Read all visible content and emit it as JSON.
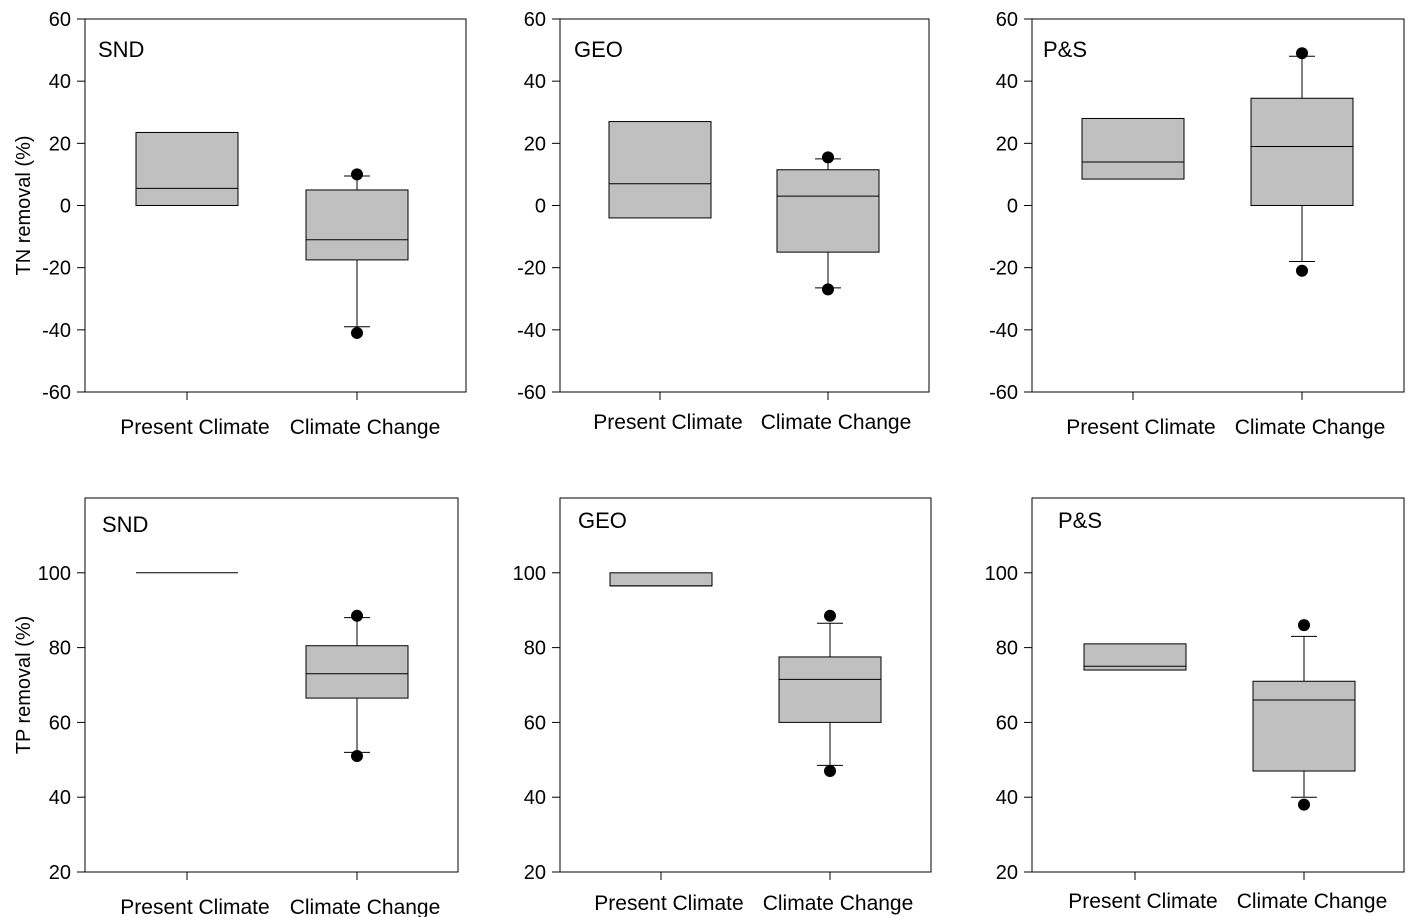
{
  "chart_data": [
    {
      "type": "box",
      "panel_label": "SND",
      "ylabel": "TN removal (%)",
      "ylim": [
        -60,
        60
      ],
      "yticks": [
        -60,
        -40,
        -20,
        0,
        20,
        40,
        60
      ],
      "categories": [
        "Present Climate",
        "Climate Change"
      ],
      "boxes": [
        {
          "category": "Present Climate",
          "q1": 0,
          "median": 5.5,
          "q3": 23.5
        },
        {
          "category": "Climate Change",
          "q1": -17.5,
          "median": -11,
          "q3": 5,
          "whisker_low": -39,
          "whisker_high": 9.5,
          "outliers": [
            -41,
            10
          ]
        }
      ]
    },
    {
      "type": "box",
      "panel_label": "GEO",
      "ylabel": "",
      "ylim": [
        -60,
        60
      ],
      "yticks": [
        -60,
        -40,
        -20,
        0,
        20,
        40,
        60
      ],
      "categories": [
        "Present Climate",
        "Climate Change"
      ],
      "boxes": [
        {
          "category": "Present Climate",
          "q1": -4,
          "median": 7,
          "q3": 27
        },
        {
          "category": "Climate Change",
          "q1": -15,
          "median": 3,
          "q3": 11.5,
          "whisker_low": -26.5,
          "whisker_high": 15,
          "outliers": [
            -27,
            15.5
          ]
        }
      ]
    },
    {
      "type": "box",
      "panel_label": "P&S",
      "ylabel": "",
      "ylim": [
        -60,
        60
      ],
      "yticks": [
        -60,
        -40,
        -20,
        0,
        20,
        40,
        60
      ],
      "categories": [
        "Present Climate",
        "Climate Change"
      ],
      "boxes": [
        {
          "category": "Present Climate",
          "q1": 8.5,
          "median": 14,
          "q3": 28
        },
        {
          "category": "Climate Change",
          "q1": 0,
          "median": 19,
          "q3": 34.5,
          "whisker_low": -18,
          "whisker_high": 48,
          "outliers": [
            -21,
            49
          ]
        }
      ]
    },
    {
      "type": "box",
      "panel_label": "SND",
      "ylabel": "TP removal (%)",
      "ylim": [
        20,
        120
      ],
      "yticks": [
        20,
        40,
        60,
        80,
        100
      ],
      "categories": [
        "Present Climate",
        "Climate Change"
      ],
      "boxes": [
        {
          "category": "Present Climate",
          "q1": 100,
          "median": 100,
          "q3": 100
        },
        {
          "category": "Climate Change",
          "q1": 66.5,
          "median": 73,
          "q3": 80.5,
          "whisker_low": 52,
          "whisker_high": 88,
          "outliers": [
            51,
            88.5
          ]
        }
      ]
    },
    {
      "type": "box",
      "panel_label": "GEO",
      "ylabel": "",
      "ylim": [
        20,
        120
      ],
      "yticks": [
        20,
        40,
        60,
        80,
        100
      ],
      "categories": [
        "Present Climate",
        "Climate Change"
      ],
      "boxes": [
        {
          "category": "Present Climate",
          "q1": 96.5,
          "median": 96.5,
          "q3": 100
        },
        {
          "category": "Climate Change",
          "q1": 60,
          "median": 71.5,
          "q3": 77.5,
          "whisker_low": 48.5,
          "whisker_high": 86.5,
          "outliers": [
            47,
            88.5
          ]
        }
      ]
    },
    {
      "type": "box",
      "panel_label": "P&S",
      "ylabel": "",
      "ylim": [
        20,
        120
      ],
      "yticks": [
        20,
        40,
        60,
        80,
        100
      ],
      "categories": [
        "Present Climate",
        "Climate Change"
      ],
      "boxes": [
        {
          "category": "Present Climate",
          "q1": 74,
          "median": 75,
          "q3": 81
        },
        {
          "category": "Climate Change",
          "q1": 47,
          "median": 66,
          "q3": 71,
          "whisker_low": 40,
          "whisker_high": 83,
          "outliers": [
            38,
            86
          ]
        }
      ]
    }
  ],
  "colors": {
    "box_fill": "#c0c0c0",
    "stroke": "#000000"
  }
}
